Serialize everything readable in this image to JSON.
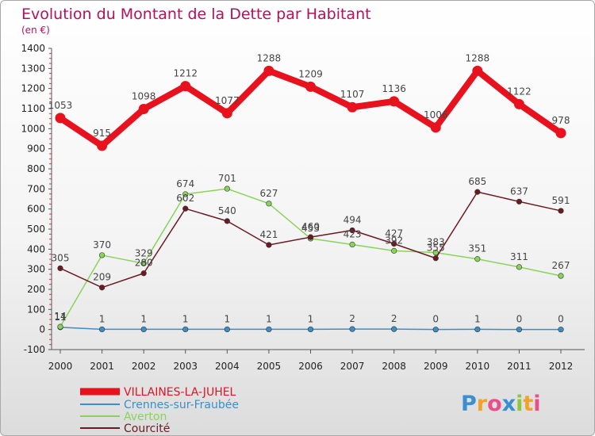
{
  "chart_data": {
    "type": "line",
    "title": "Evolution du Montant de la Dette par Habitant",
    "subtitle": "(en €)",
    "x": [
      "2000",
      "2001",
      "2002",
      "2003",
      "2004",
      "2005",
      "2006",
      "2007",
      "2008",
      "2009",
      "2010",
      "2011",
      "2012"
    ],
    "ylim": [
      -100,
      1400
    ],
    "yticks": [
      -100,
      0,
      100,
      200,
      300,
      400,
      500,
      600,
      700,
      800,
      900,
      1000,
      1100,
      1200,
      1300,
      1400
    ],
    "grid": false,
    "legend": "bottom-left",
    "series": [
      {
        "name": "VILLAINES-LA-JUHEL",
        "color": "#e8121f",
        "values": [
          1053,
          915,
          1098,
          1212,
          1077,
          1288,
          1209,
          1107,
          1136,
          1006,
          1288,
          1122,
          978
        ],
        "labels": [
          "1053",
          "915",
          "1098",
          "1212",
          "1077",
          "1288",
          "1209",
          "1107",
          "1136",
          "1006",
          "1288",
          "1122",
          "978"
        ]
      },
      {
        "name": "Crennes-sur-Fraubée",
        "color": "#3c8ec9",
        "values": [
          11,
          1,
          1,
          1,
          1,
          1,
          1,
          2,
          2,
          0,
          1,
          0,
          0
        ],
        "labels": [
          "11",
          "1",
          "1",
          "1",
          "1",
          "1",
          "1",
          "2",
          "2",
          "0",
          "1",
          "0",
          "0"
        ]
      },
      {
        "name": "Averton",
        "color": "#88d45b",
        "values": [
          14,
          370,
          329,
          674,
          701,
          627,
          453,
          423,
          392,
          383,
          351,
          311,
          267
        ],
        "labels": [
          "14",
          "370",
          "329",
          "674",
          "701",
          "627",
          "453",
          "423",
          "392",
          "383",
          "351",
          "311",
          "267"
        ]
      },
      {
        "name": "Courcité",
        "color": "#6b1a22",
        "values": [
          305,
          209,
          280,
          602,
          540,
          421,
          460,
          494,
          427,
          355,
          685,
          637,
          591
        ],
        "labels": [
          "305",
          "209",
          "280",
          "602",
          "540",
          "421",
          "460",
          "494",
          "427",
          "355",
          "685",
          "637",
          "591"
        ]
      }
    ]
  },
  "logo": {
    "text": "Proxiti",
    "letters": [
      "P",
      "r",
      "o",
      "x",
      "i",
      "t",
      "i"
    ],
    "colors": [
      "#3b8ed0",
      "#f0a22a",
      "#e94f8a",
      "#3b8ed0",
      "#8dc63f",
      "#f0a22a",
      "#e94f8a"
    ]
  }
}
